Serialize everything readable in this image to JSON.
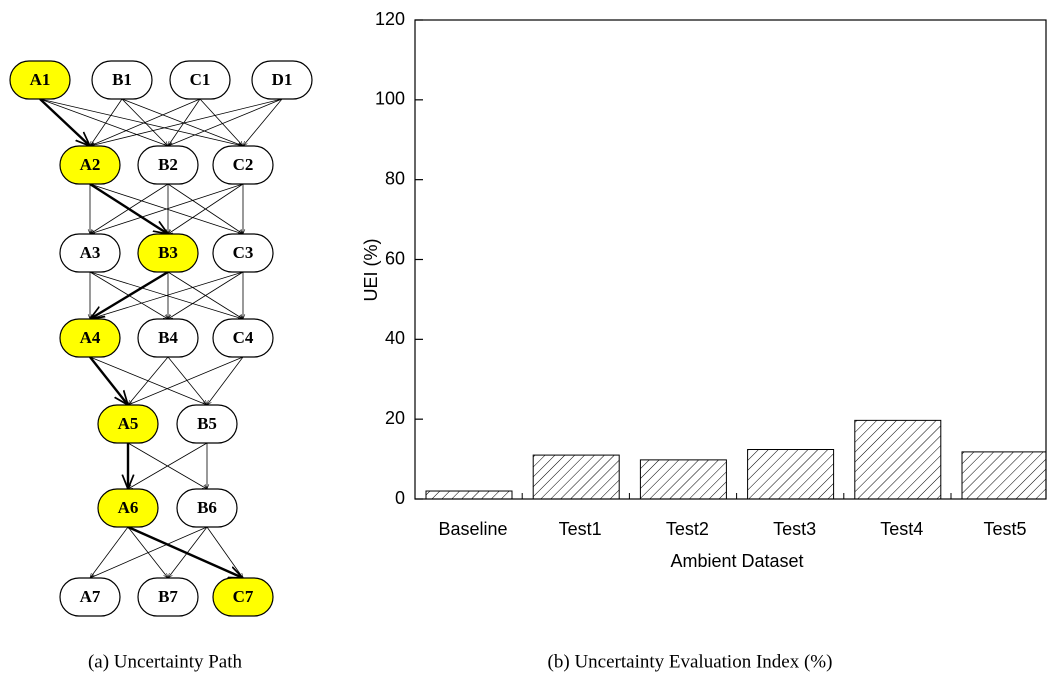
{
  "diagram": {
    "caption": "(a) Uncertainty Path",
    "rows": [
      {
        "nodes": [
          {
            "label": "A1",
            "highlight": true
          },
          {
            "label": "B1",
            "highlight": false
          },
          {
            "label": "C1",
            "highlight": false
          },
          {
            "label": "D1",
            "highlight": false
          }
        ]
      },
      {
        "nodes": [
          {
            "label": "A2",
            "highlight": true
          },
          {
            "label": "B2",
            "highlight": false
          },
          {
            "label": "C2",
            "highlight": false
          }
        ]
      },
      {
        "nodes": [
          {
            "label": "A3",
            "highlight": false
          },
          {
            "label": "B3",
            "highlight": true
          },
          {
            "label": "C3",
            "highlight": false
          }
        ]
      },
      {
        "nodes": [
          {
            "label": "A4",
            "highlight": true
          },
          {
            "label": "B4",
            "highlight": false
          },
          {
            "label": "C4",
            "highlight": false
          }
        ]
      },
      {
        "nodes": [
          {
            "label": "A5",
            "highlight": true
          },
          {
            "label": "B5",
            "highlight": false
          }
        ]
      },
      {
        "nodes": [
          {
            "label": "A6",
            "highlight": true
          },
          {
            "label": "B6",
            "highlight": false
          }
        ]
      },
      {
        "nodes": [
          {
            "label": "A7",
            "highlight": false
          },
          {
            "label": "B7",
            "highlight": false
          },
          {
            "label": "C7",
            "highlight": true
          }
        ]
      }
    ],
    "highlight_color": "#ffff00"
  },
  "chart_data": {
    "type": "bar",
    "caption": "(b) Uncertainty Evaluation Index (%)",
    "xlabel": "Ambient Dataset",
    "ylabel": "UEI (%)",
    "categories": [
      "Baseline",
      "Test1",
      "Test2",
      "Test3",
      "Test4",
      "Test5"
    ],
    "values": [
      2,
      11,
      9.8,
      12.4,
      19.7,
      11.8
    ],
    "ylim": [
      0,
      120
    ],
    "yticks": [
      0,
      20,
      40,
      60,
      80,
      100,
      120
    ],
    "color": "#000000",
    "hatch": true
  }
}
